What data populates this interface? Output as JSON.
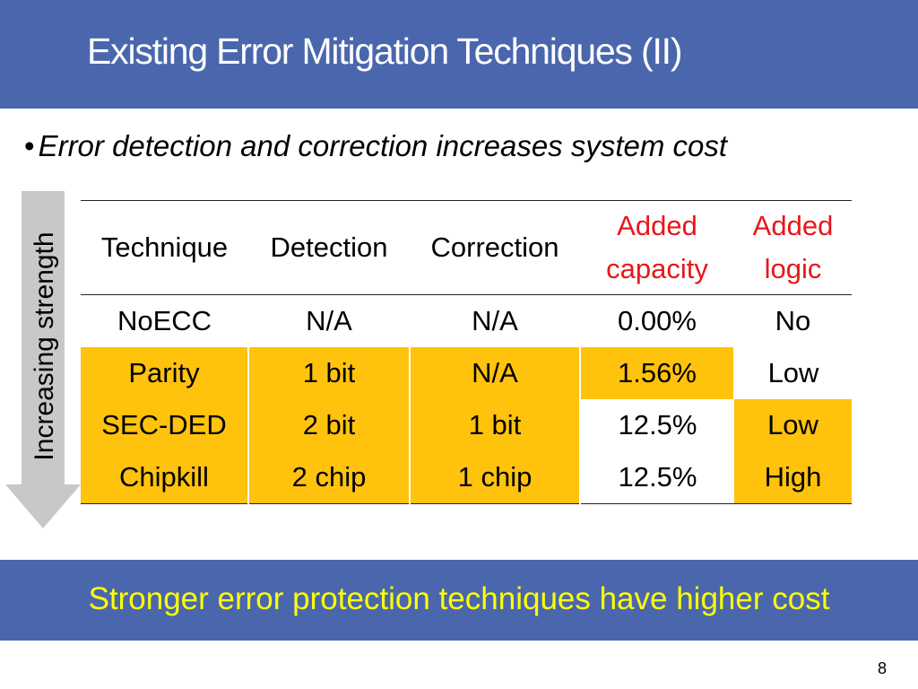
{
  "slide": {
    "title": "Existing Error Mitigation Techniques (II)",
    "bullet": "Error detection and correction increases system cost",
    "bullet_marker": "•",
    "arrow_label": "Increasing strength",
    "footer": "Stronger error protection techniques have higher cost",
    "page_number": "8"
  },
  "table": {
    "headers": [
      {
        "line1": "Technique",
        "line2": ""
      },
      {
        "line1": "Detection",
        "line2": ""
      },
      {
        "line1": "Correction",
        "line2": ""
      },
      {
        "line1": "Added",
        "line2": "capacity"
      },
      {
        "line1": "Added",
        "line2": "logic"
      }
    ],
    "rows": [
      {
        "cells": [
          "NoECC",
          "N/A",
          "N/A",
          "0.00%",
          "No"
        ]
      },
      {
        "cells": [
          "Parity",
          "1 bit",
          "N/A",
          "1.56%",
          "Low"
        ]
      },
      {
        "cells": [
          "SEC-DED",
          "2 bit",
          "1 bit",
          "12.5%",
          "Low"
        ]
      },
      {
        "cells": [
          "Chipkill",
          "2 chip",
          "1 chip",
          "12.5%",
          "High"
        ]
      }
    ]
  },
  "colors": {
    "header_bg": "#4a67ad",
    "highlight": "#ffc20d",
    "added_header_text": "#e8161b",
    "footer_text": "#ffff00",
    "arrow": "#c8c8c8"
  }
}
